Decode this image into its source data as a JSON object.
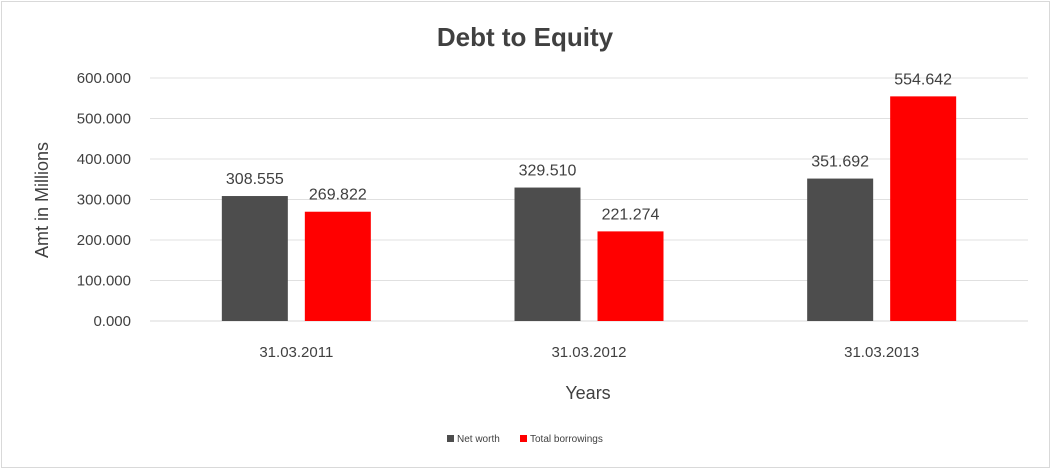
{
  "chart_data": {
    "type": "bar",
    "title": "Debt to Equity",
    "xlabel": "Years",
    "ylabel": "Amt in Millions",
    "categories": [
      "31.03.2011",
      "31.03.2012",
      "31.03.2013"
    ],
    "series": [
      {
        "name": "Net worth",
        "color": "#4d4d4d",
        "values": [
          308.555,
          329.51,
          351.692
        ],
        "labels": [
          "308.555",
          "329.510",
          "351.692"
        ]
      },
      {
        "name": "Total borrowings",
        "color": "#ff0000",
        "values": [
          269.822,
          221.274,
          554.642
        ],
        "labels": [
          "269.822",
          "221.274",
          "554.642"
        ]
      }
    ],
    "ylim": [
      0,
      600
    ],
    "yticks": [
      "0.000",
      "100.000",
      "200.000",
      "300.000",
      "400.000",
      "500.000",
      "600.000"
    ],
    "grid": true,
    "legend": "bottom"
  }
}
